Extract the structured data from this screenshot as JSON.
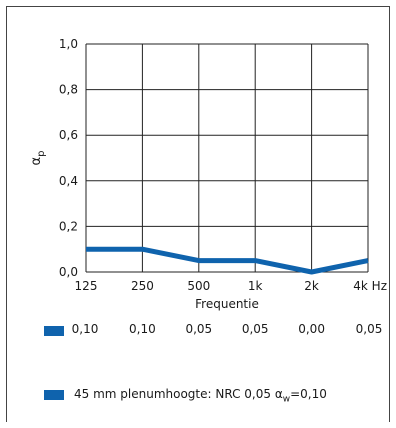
{
  "chart_data": {
    "type": "line",
    "categories": [
      "125",
      "250",
      "500",
      "1k",
      "2k",
      "4k Hz"
    ],
    "values": [
      0.1,
      0.1,
      0.05,
      0.05,
      0.0,
      0.05
    ],
    "value_labels": [
      "0,10",
      "0,10",
      "0,05",
      "0,05",
      "0,00",
      "0,05"
    ],
    "y_ticks": [
      "0,0",
      "0,2",
      "0,4",
      "0,6",
      "0,8",
      "1,0"
    ],
    "ylim": [
      0,
      1.0
    ],
    "xlabel": "Frequentie",
    "ylabel": "αp",
    "grid": true,
    "series_color": "#0f63ad"
  },
  "legend": {
    "text_prefix": "45 mm plenumhoogte: NRC 0,05 ",
    "alpha_symbol": "α",
    "alpha_sub": "w",
    "text_suffix": "=0,10"
  }
}
